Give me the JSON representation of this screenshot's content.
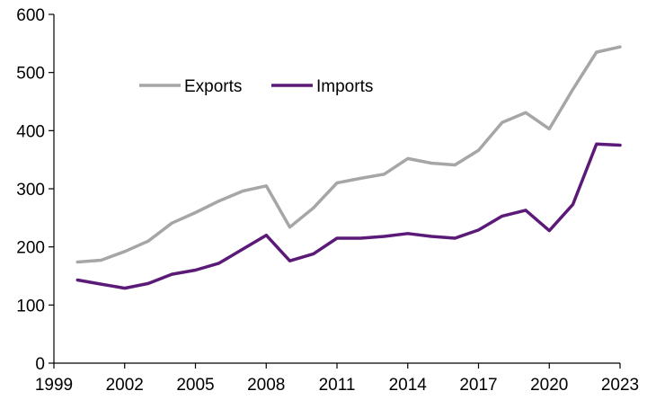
{
  "chart_data": {
    "type": "line",
    "title": "",
    "xlabel": "",
    "ylabel": "",
    "xlim": [
      1999,
      2023
    ],
    "ylim": [
      0,
      600
    ],
    "x_ticks": [
      1999,
      2002,
      2005,
      2008,
      2011,
      2014,
      2017,
      2020,
      2023
    ],
    "y_ticks": [
      0,
      100,
      200,
      300,
      400,
      500,
      600
    ],
    "grid": false,
    "legend_position": "top-left",
    "x": [
      2000,
      2001,
      2002,
      2003,
      2004,
      2005,
      2006,
      2007,
      2008,
      2009,
      2010,
      2011,
      2012,
      2013,
      2014,
      2015,
      2016,
      2017,
      2018,
      2019,
      2020,
      2021,
      2022,
      2023
    ],
    "series": [
      {
        "name": "Exports",
        "color": "#a6a6a6",
        "values": [
          174,
          177,
          192,
          210,
          241,
          259,
          279,
          296,
          305,
          234,
          267,
          310,
          318,
          325,
          352,
          344,
          341,
          366,
          414,
          431,
          403,
          471,
          535,
          544
        ]
      },
      {
        "name": "Imports",
        "color": "#5b1a78",
        "values": [
          143,
          136,
          129,
          137,
          153,
          160,
          172,
          196,
          220,
          176,
          188,
          215,
          215,
          218,
          223,
          218,
          215,
          229,
          253,
          263,
          228,
          273,
          377,
          375
        ]
      }
    ]
  }
}
